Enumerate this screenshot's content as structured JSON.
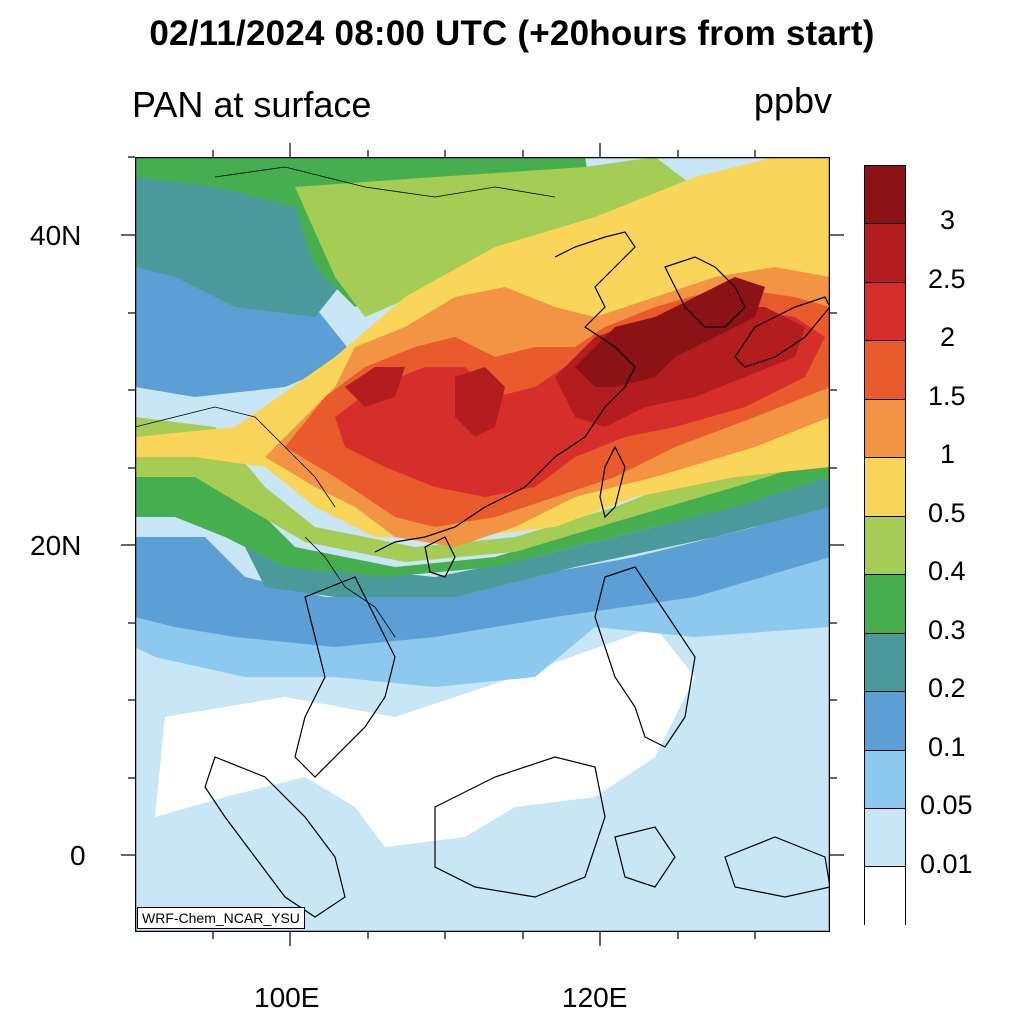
{
  "title": "02/11/2024 08:00 UTC (+20hours from start)",
  "variable_label": "PAN at surface",
  "units": "ppbv",
  "credit": "WRF-Chem_NCAR_YSU",
  "axes": {
    "lat_labels": [
      "40N",
      "20N",
      "0"
    ],
    "lon_labels": [
      "100E",
      "120E"
    ]
  },
  "legend": {
    "labels": [
      "3",
      "2.5",
      "2",
      "1.5",
      "1",
      "0.5",
      "0.4",
      "0.3",
      "0.2",
      "0.1",
      "0.05",
      "0.01"
    ],
    "colors": [
      "#8b1315",
      "#b41d20",
      "#d62e2a",
      "#e95a2c",
      "#f29443",
      "#f9d65a",
      "#a5cc54",
      "#46ae4f",
      "#4a9a9b",
      "#5b9fd5",
      "#8dc8ee",
      "#c9e6f7",
      "#ffffff"
    ]
  },
  "colors": {
    "ocean_background": "#c9e6f7",
    "coastline": "#000000"
  }
}
